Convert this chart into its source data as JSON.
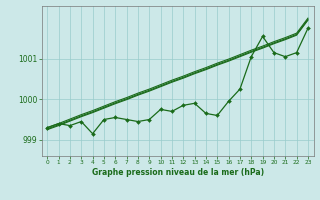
{
  "xlabel": "Graphe pression niveau de la mer (hPa)",
  "ylim": [
    998.6,
    1002.3
  ],
  "xlim": [
    -0.5,
    23.5
  ],
  "yticks": [
    999,
    1000,
    1001
  ],
  "xticks": [
    0,
    1,
    2,
    3,
    4,
    5,
    6,
    7,
    8,
    9,
    10,
    11,
    12,
    13,
    14,
    15,
    16,
    17,
    18,
    19,
    20,
    21,
    22,
    23
  ],
  "bg_color": "#cce8e8",
  "grid_color": "#99cccc",
  "line_color": "#1a6b1a",
  "data_main": [
    999.3,
    999.4,
    999.35,
    999.45,
    999.15,
    999.5,
    999.55,
    999.5,
    999.45,
    999.5,
    999.75,
    999.7,
    999.85,
    999.9,
    999.65,
    999.6,
    999.95,
    1000.25,
    1001.05,
    1001.55,
    1001.15,
    1001.05,
    1001.15,
    1001.75
  ],
  "trend_line1": [
    999.25,
    999.35,
    999.46,
    999.57,
    999.67,
    999.78,
    999.89,
    999.99,
    1000.1,
    1000.2,
    1000.31,
    1000.42,
    1000.52,
    1000.63,
    1000.73,
    1000.84,
    1000.94,
    1001.05,
    1001.16,
    1001.26,
    1001.37,
    1001.47,
    1001.58,
    1001.95
  ],
  "trend_line2": [
    999.27,
    999.37,
    999.48,
    999.59,
    999.69,
    999.8,
    999.91,
    1000.01,
    1000.12,
    1000.22,
    1000.33,
    1000.44,
    1000.54,
    1000.65,
    1000.75,
    1000.86,
    1000.96,
    1001.07,
    1001.18,
    1001.28,
    1001.39,
    1001.49,
    1001.6,
    1001.97
  ],
  "trend_line3": [
    999.3,
    999.4,
    999.51,
    999.62,
    999.72,
    999.83,
    999.94,
    1000.04,
    1000.15,
    1000.25,
    1000.36,
    1000.47,
    1000.57,
    1000.68,
    1000.78,
    1000.89,
    1000.99,
    1001.1,
    1001.21,
    1001.31,
    1001.42,
    1001.52,
    1001.63,
    1002.0
  ]
}
